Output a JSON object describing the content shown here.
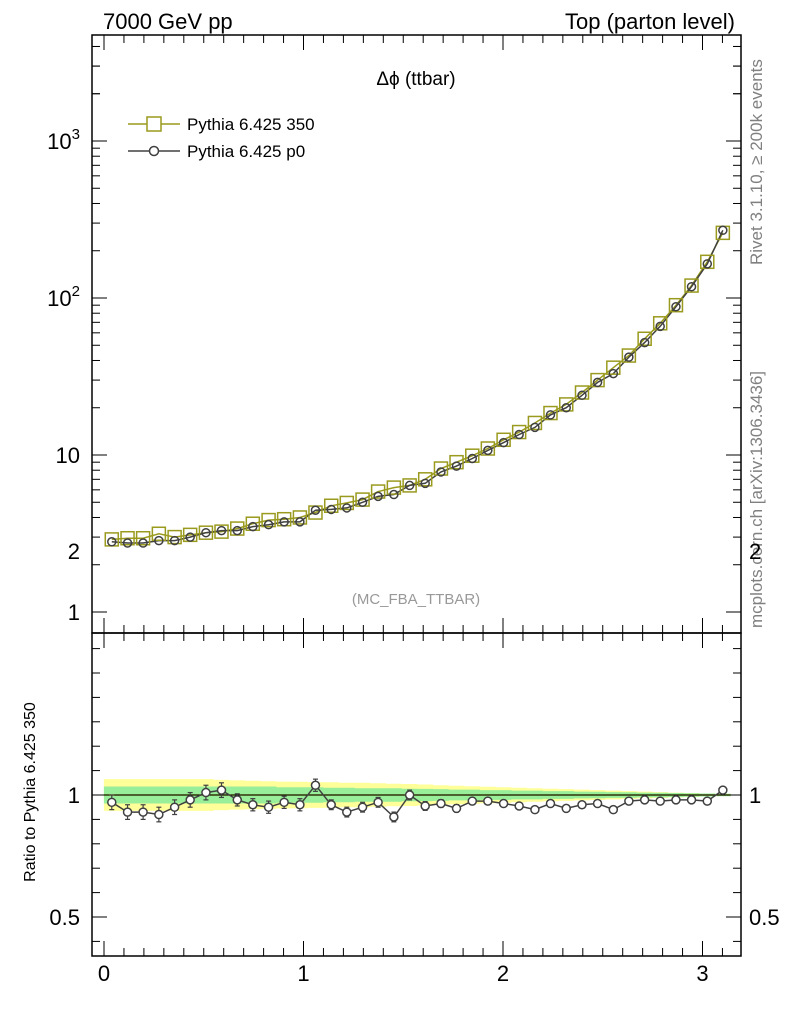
{
  "header": {
    "left": "7000 GeV pp",
    "right": "Top (parton level)"
  },
  "side_labels": {
    "rivet": "Rivet 3.1.10, ≥ 200k events",
    "mcplots": "mcplots.cern.ch [arXiv:1306.3436]"
  },
  "colors": {
    "series_350": "#9a9a1e",
    "series_p0": "#404040",
    "band_outer": "#ffff99",
    "band_inner": "#99ee99",
    "watermark": "#999999",
    "side_text": "#808080"
  },
  "chart_data": [
    {
      "type": "line",
      "panel": "main",
      "title": "Δϕ (ttbar)",
      "watermark": "(MC_FBA_TTBAR)",
      "yscale": "log",
      "xlim": [
        -0.06,
        3.2
      ],
      "ylim": [
        0.8,
        5000
      ],
      "ytick_labels": [
        "1",
        "10",
        "10^2",
        "10^3"
      ],
      "ytick_values": [
        1,
        10,
        100,
        1000
      ],
      "legend_placement": "top-left",
      "x": [
        0.039,
        0.118,
        0.196,
        0.275,
        0.354,
        0.432,
        0.511,
        0.589,
        0.668,
        0.746,
        0.825,
        0.903,
        0.982,
        1.06,
        1.139,
        1.217,
        1.296,
        1.374,
        1.453,
        1.532,
        1.61,
        1.689,
        1.767,
        1.846,
        1.924,
        2.003,
        2.081,
        2.16,
        2.238,
        2.317,
        2.396,
        2.474,
        2.553,
        2.631,
        2.71,
        2.788,
        2.867,
        2.945,
        3.024,
        3.102
      ],
      "series": [
        {
          "name": "Pythia 6.425 350",
          "marker": "square",
          "values": [
            2.9,
            2.95,
            2.95,
            3.15,
            3.0,
            3.1,
            3.2,
            3.25,
            3.4,
            3.65,
            3.85,
            3.9,
            4.0,
            4.3,
            4.75,
            4.95,
            5.2,
            5.85,
            6.2,
            6.4,
            7.0,
            8.2,
            9.0,
            9.9,
            11.0,
            12.5,
            14.0,
            16.0,
            18.5,
            21.0,
            25.0,
            30.0,
            36.0,
            43.0,
            55.0,
            69.0,
            90.0,
            120.0,
            170.0,
            260.0
          ]
        },
        {
          "name": "Pythia 6.425 p0",
          "marker": "circle",
          "values": [
            2.8,
            2.75,
            2.75,
            2.85,
            2.85,
            3.0,
            3.2,
            3.3,
            3.3,
            3.5,
            3.6,
            3.75,
            3.75,
            4.45,
            4.5,
            4.6,
            5.0,
            5.45,
            5.6,
            6.4,
            6.6,
            7.8,
            8.5,
            9.5,
            10.7,
            12.0,
            13.5,
            15.0,
            18.0,
            20.0,
            24.0,
            29.0,
            33.0,
            42.0,
            52.0,
            66.0,
            88.0,
            118.0,
            165.0,
            270.0
          ]
        }
      ]
    },
    {
      "type": "line",
      "panel": "ratio",
      "ylabel": "Ratio to Pythia 6.425 350",
      "xlim": [
        -0.06,
        3.2
      ],
      "ylim": [
        0.4,
        2.3
      ],
      "xtick_labels": [
        "0",
        "1",
        "2",
        "3"
      ],
      "xtick_values": [
        0,
        1,
        2,
        3
      ],
      "ytick_labels": [
        "0.5",
        "1",
        "2"
      ],
      "ytick_values": [
        0.5,
        1,
        2
      ],
      "reference_band": {
        "inner_halfwidth": [
          0.035,
          0.035,
          0.035,
          0.035,
          0.035,
          0.035,
          0.035,
          0.035,
          0.035,
          0.035,
          0.035,
          0.032,
          0.032,
          0.032,
          0.03,
          0.03,
          0.028,
          0.028,
          0.028,
          0.026,
          0.025,
          0.024,
          0.022,
          0.022,
          0.02,
          0.02,
          0.018,
          0.018,
          0.016,
          0.016,
          0.014,
          0.013,
          0.012,
          0.011,
          0.01,
          0.009,
          0.008,
          0.007,
          0.006,
          0.005
        ],
        "outer_halfwidth": [
          0.065,
          0.065,
          0.065,
          0.065,
          0.065,
          0.065,
          0.065,
          0.062,
          0.06,
          0.058,
          0.056,
          0.055,
          0.054,
          0.053,
          0.052,
          0.05,
          0.05,
          0.048,
          0.046,
          0.045,
          0.043,
          0.04,
          0.038,
          0.036,
          0.034,
          0.032,
          0.03,
          0.028,
          0.026,
          0.024,
          0.022,
          0.02,
          0.018,
          0.016,
          0.014,
          0.012,
          0.01,
          0.008,
          0.006,
          0.004
        ]
      },
      "series": [
        {
          "name": "Pythia 6.425 p0",
          "values": [
            0.97,
            0.93,
            0.93,
            0.92,
            0.95,
            0.98,
            1.01,
            1.02,
            0.98,
            0.96,
            0.95,
            0.97,
            0.96,
            1.04,
            0.96,
            0.93,
            0.95,
            0.97,
            0.91,
            1.0,
            0.955,
            0.965,
            0.945,
            0.975,
            0.975,
            0.965,
            0.955,
            0.94,
            0.965,
            0.945,
            0.96,
            0.965,
            0.94,
            0.975,
            0.98,
            0.975,
            0.98,
            0.98,
            0.975,
            1.02
          ],
          "errors": [
            0.03,
            0.03,
            0.03,
            0.03,
            0.03,
            0.03,
            0.03,
            0.03,
            0.025,
            0.025,
            0.025,
            0.025,
            0.025,
            0.025,
            0.02,
            0.02,
            0.02,
            0.02,
            0.02,
            0.02,
            0.018,
            0.016,
            0.015,
            0.014,
            0.013,
            0.012,
            0.011,
            0.01,
            0.009,
            0.008,
            0.008,
            0.007,
            0.006,
            0.006,
            0.005,
            0.005,
            0.004,
            0.004,
            0.004,
            0.004
          ]
        }
      ]
    }
  ]
}
